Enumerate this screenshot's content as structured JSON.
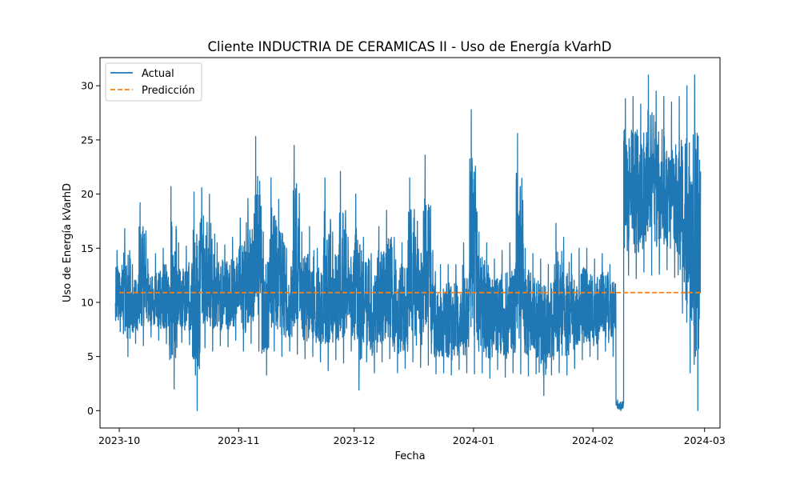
{
  "chart_data": {
    "type": "line",
    "title": "Cliente INDUCTRIA DE CERAMICAS II - Uso de Energía kVarhD",
    "xlabel": "Fecha",
    "ylabel": "Uso de Energía kVarhD",
    "x_range": [
      "2023-09-26",
      "2024-03-05"
    ],
    "ylim": [
      -1.6,
      32.6
    ],
    "x_ticks": [
      "2023-10",
      "2023-11",
      "2023-12",
      "2024-01",
      "2024-02",
      "2024-03"
    ],
    "y_ticks": [
      0,
      5,
      10,
      15,
      20,
      25,
      30
    ],
    "grid": false,
    "legend_position": "top-left",
    "series": [
      {
        "name": "Actual",
        "color": "#1f77b4",
        "style": "solid",
        "x": [
          "2023-10-01",
          "2023-10-03",
          "2023-10-05",
          "2023-10-07",
          "2023-10-09",
          "2023-10-11",
          "2023-10-13",
          "2023-10-15",
          "2023-10-17",
          "2023-10-19",
          "2023-10-21",
          "2023-10-23",
          "2023-10-25",
          "2023-10-27",
          "2023-10-29",
          "2023-10-31",
          "2023-11-02",
          "2023-11-04",
          "2023-11-06",
          "2023-11-08",
          "2023-11-10",
          "2023-11-12",
          "2023-11-14",
          "2023-11-16",
          "2023-11-18",
          "2023-11-20",
          "2023-11-22",
          "2023-11-24",
          "2023-11-26",
          "2023-11-28",
          "2023-11-30",
          "2023-12-02",
          "2023-12-04",
          "2023-12-06",
          "2023-12-08",
          "2023-12-10",
          "2023-12-12",
          "2023-12-14",
          "2023-12-16",
          "2023-12-18",
          "2023-12-20",
          "2023-12-22",
          "2023-12-24",
          "2023-12-26",
          "2023-12-28",
          "2023-12-30",
          "2024-01-01",
          "2024-01-03",
          "2024-01-05",
          "2024-01-07",
          "2024-01-09",
          "2024-01-11",
          "2024-01-13",
          "2024-01-15",
          "2024-01-17",
          "2024-01-19",
          "2024-01-21",
          "2024-01-23",
          "2024-01-25",
          "2024-01-27",
          "2024-01-29",
          "2024-01-31",
          "2024-02-02",
          "2024-02-04",
          "2024-02-06",
          "2024-02-08",
          "2024-02-10",
          "2024-02-12",
          "2024-02-14",
          "2024-02-16",
          "2024-02-18",
          "2024-02-20",
          "2024-02-22",
          "2024-02-24",
          "2024-02-26",
          "2024-02-28"
        ],
        "y_max": [
          14.8,
          16.8,
          13.5,
          19.2,
          14.0,
          14.5,
          15.0,
          20.7,
          15.5,
          15.2,
          20.2,
          20.6,
          20.0,
          15.5,
          15.3,
          16.0,
          17.8,
          19.6,
          25.3,
          16.5,
          21.5,
          19.5,
          15.0,
          24.5,
          16.5,
          17.0,
          15.0,
          21.5,
          16.5,
          22.1,
          16.0,
          20.0,
          16.0,
          14.5,
          17.0,
          18.5,
          16.0,
          15.5,
          21.5,
          17.5,
          23.6,
          14.8,
          13.5,
          13.5,
          13.5,
          15.5,
          27.8,
          16.5,
          15.5,
          14.0,
          14.8,
          15.5,
          25.6,
          15.0,
          14.5,
          14.0,
          13.5,
          17.3,
          16.0,
          14.5,
          15.0,
          15.0,
          14.0,
          14.5,
          13.5,
          1.0,
          28.8,
          29.0,
          28.3,
          31.0,
          29.5,
          29.0,
          28.5,
          29.0,
          30.0,
          31.0
        ],
        "y_min": [
          7.3,
          5.0,
          6.2,
          6.0,
          6.8,
          6.5,
          6.2,
          2.0,
          6.3,
          6.1,
          0.0,
          5.8,
          5.5,
          6.0,
          5.9,
          6.5,
          5.5,
          6.2,
          5.5,
          3.3,
          5.5,
          5.0,
          5.5,
          5.2,
          4.8,
          5.0,
          4.5,
          3.7,
          4.7,
          4.4,
          5.5,
          1.9,
          4.5,
          3.5,
          4.5,
          4.8,
          3.5,
          3.9,
          4.5,
          4.0,
          4.2,
          3.4,
          3.5,
          3.3,
          3.8,
          3.5,
          3.4,
          3.5,
          3.0,
          3.8,
          3.1,
          3.5,
          3.4,
          3.2,
          3.4,
          1.4,
          3.3,
          3.5,
          3.3,
          3.9,
          4.7,
          5.0,
          4.7,
          5.5,
          5.0,
          0.0,
          12.5,
          12.2,
          12.8,
          12.5,
          12.6,
          13.0,
          12.3,
          9.0,
          3.5,
          0.0
        ]
      },
      {
        "name": "Predicción",
        "color": "#ff7f0e",
        "style": "dashed",
        "x": [
          "2023-10-01",
          "2024-02-29"
        ],
        "y": [
          10.9,
          10.9
        ]
      }
    ]
  }
}
